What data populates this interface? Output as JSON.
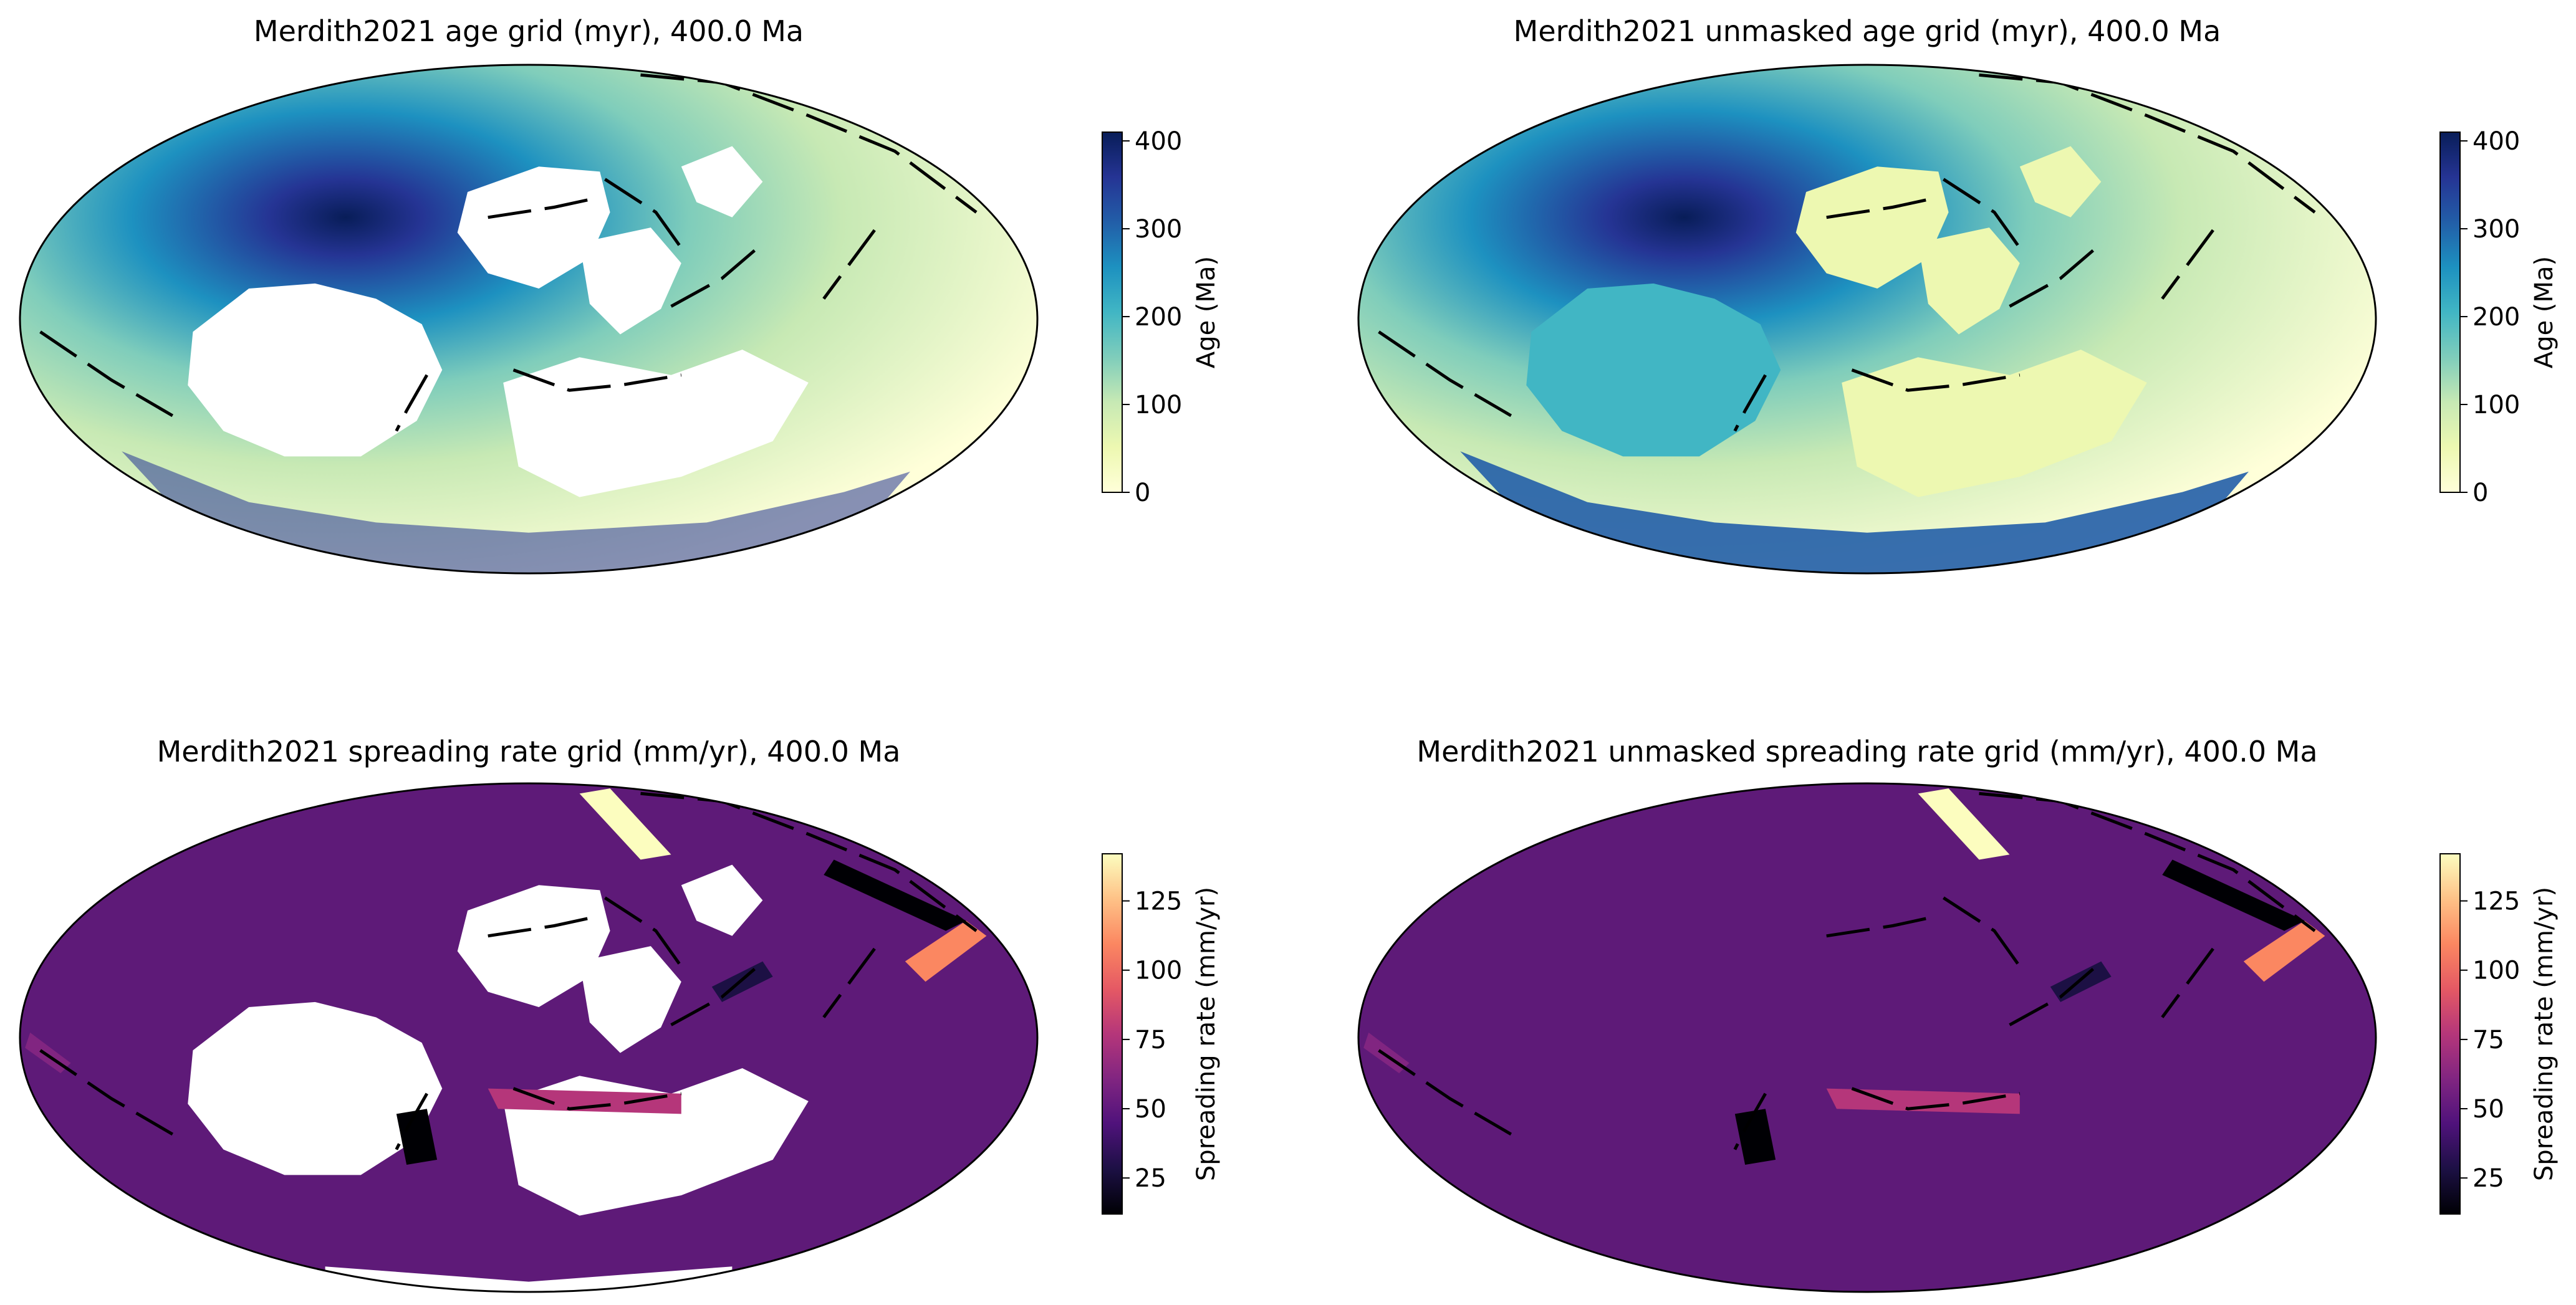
{
  "figure": {
    "background": "#ffffff",
    "outline_color": "#000000",
    "continent_color": "#ffffff"
  },
  "chart_data": [
    {
      "type": "heatmap",
      "id": "age-masked",
      "title": "Merdith2021 age grid (myr), 400.0 Ma",
      "projection": "mollweide",
      "colormap": "YlGnBu",
      "colormap_stops": [
        "#ffffd9",
        "#edf8b1",
        "#c7e9b4",
        "#7fcdbb",
        "#41b6c4",
        "#1d91c0",
        "#225ea8",
        "#253494",
        "#081d58"
      ],
      "colorbar": {
        "label": "Age (Ma)",
        "range": [
          0,
          410
        ],
        "ticks": [
          0,
          100,
          200,
          300,
          400
        ],
        "tick_labels": [
          "0",
          "100",
          "200",
          "300",
          "400"
        ]
      },
      "masked": true
    },
    {
      "type": "heatmap",
      "id": "age-unmasked",
      "title": "Merdith2021 unmasked age grid (myr), 400.0 Ma",
      "projection": "mollweide",
      "colormap": "YlGnBu",
      "colormap_stops": [
        "#ffffd9",
        "#edf8b1",
        "#c7e9b4",
        "#7fcdbb",
        "#41b6c4",
        "#1d91c0",
        "#225ea8",
        "#253494",
        "#081d58"
      ],
      "colorbar": {
        "label": "Age (Ma)",
        "range": [
          0,
          410
        ],
        "ticks": [
          0,
          100,
          200,
          300,
          400
        ],
        "tick_labels": [
          "0",
          "100",
          "200",
          "300",
          "400"
        ]
      },
      "masked": false
    },
    {
      "type": "heatmap",
      "id": "rate-masked",
      "title": "Merdith2021 spreading rate grid (mm/yr), 400.0 Ma",
      "projection": "mollweide",
      "colormap": "magma",
      "colormap_stops": [
        "#000004",
        "#1c1044",
        "#4f127b",
        "#812581",
        "#b5367a",
        "#e55964",
        "#fb8761",
        "#fec287",
        "#fcfdbf"
      ],
      "background_value_color": "#5e1a78",
      "colorbar": {
        "label": "Spreading rate (mm/yr)",
        "range": [
          12,
          142
        ],
        "ticks": [
          25,
          50,
          75,
          100,
          125
        ],
        "tick_labels": [
          "25",
          "50",
          "75",
          "100",
          "125"
        ]
      },
      "masked": true
    },
    {
      "type": "heatmap",
      "id": "rate-unmasked",
      "title": "Merdith2021 unmasked spreading rate grid (mm/yr), 400.0 Ma",
      "projection": "mollweide",
      "colormap": "magma",
      "colormap_stops": [
        "#000004",
        "#1c1044",
        "#4f127b",
        "#812581",
        "#b5367a",
        "#e55964",
        "#fb8761",
        "#fec287",
        "#fcfdbf"
      ],
      "background_value_color": "#5e1a78",
      "colorbar": {
        "label": "Spreading rate (mm/yr)",
        "range": [
          12,
          142
        ],
        "ticks": [
          25,
          50,
          75,
          100,
          125
        ],
        "tick_labels": [
          "25",
          "50",
          "75",
          "100",
          "125"
        ]
      },
      "masked": false
    }
  ]
}
